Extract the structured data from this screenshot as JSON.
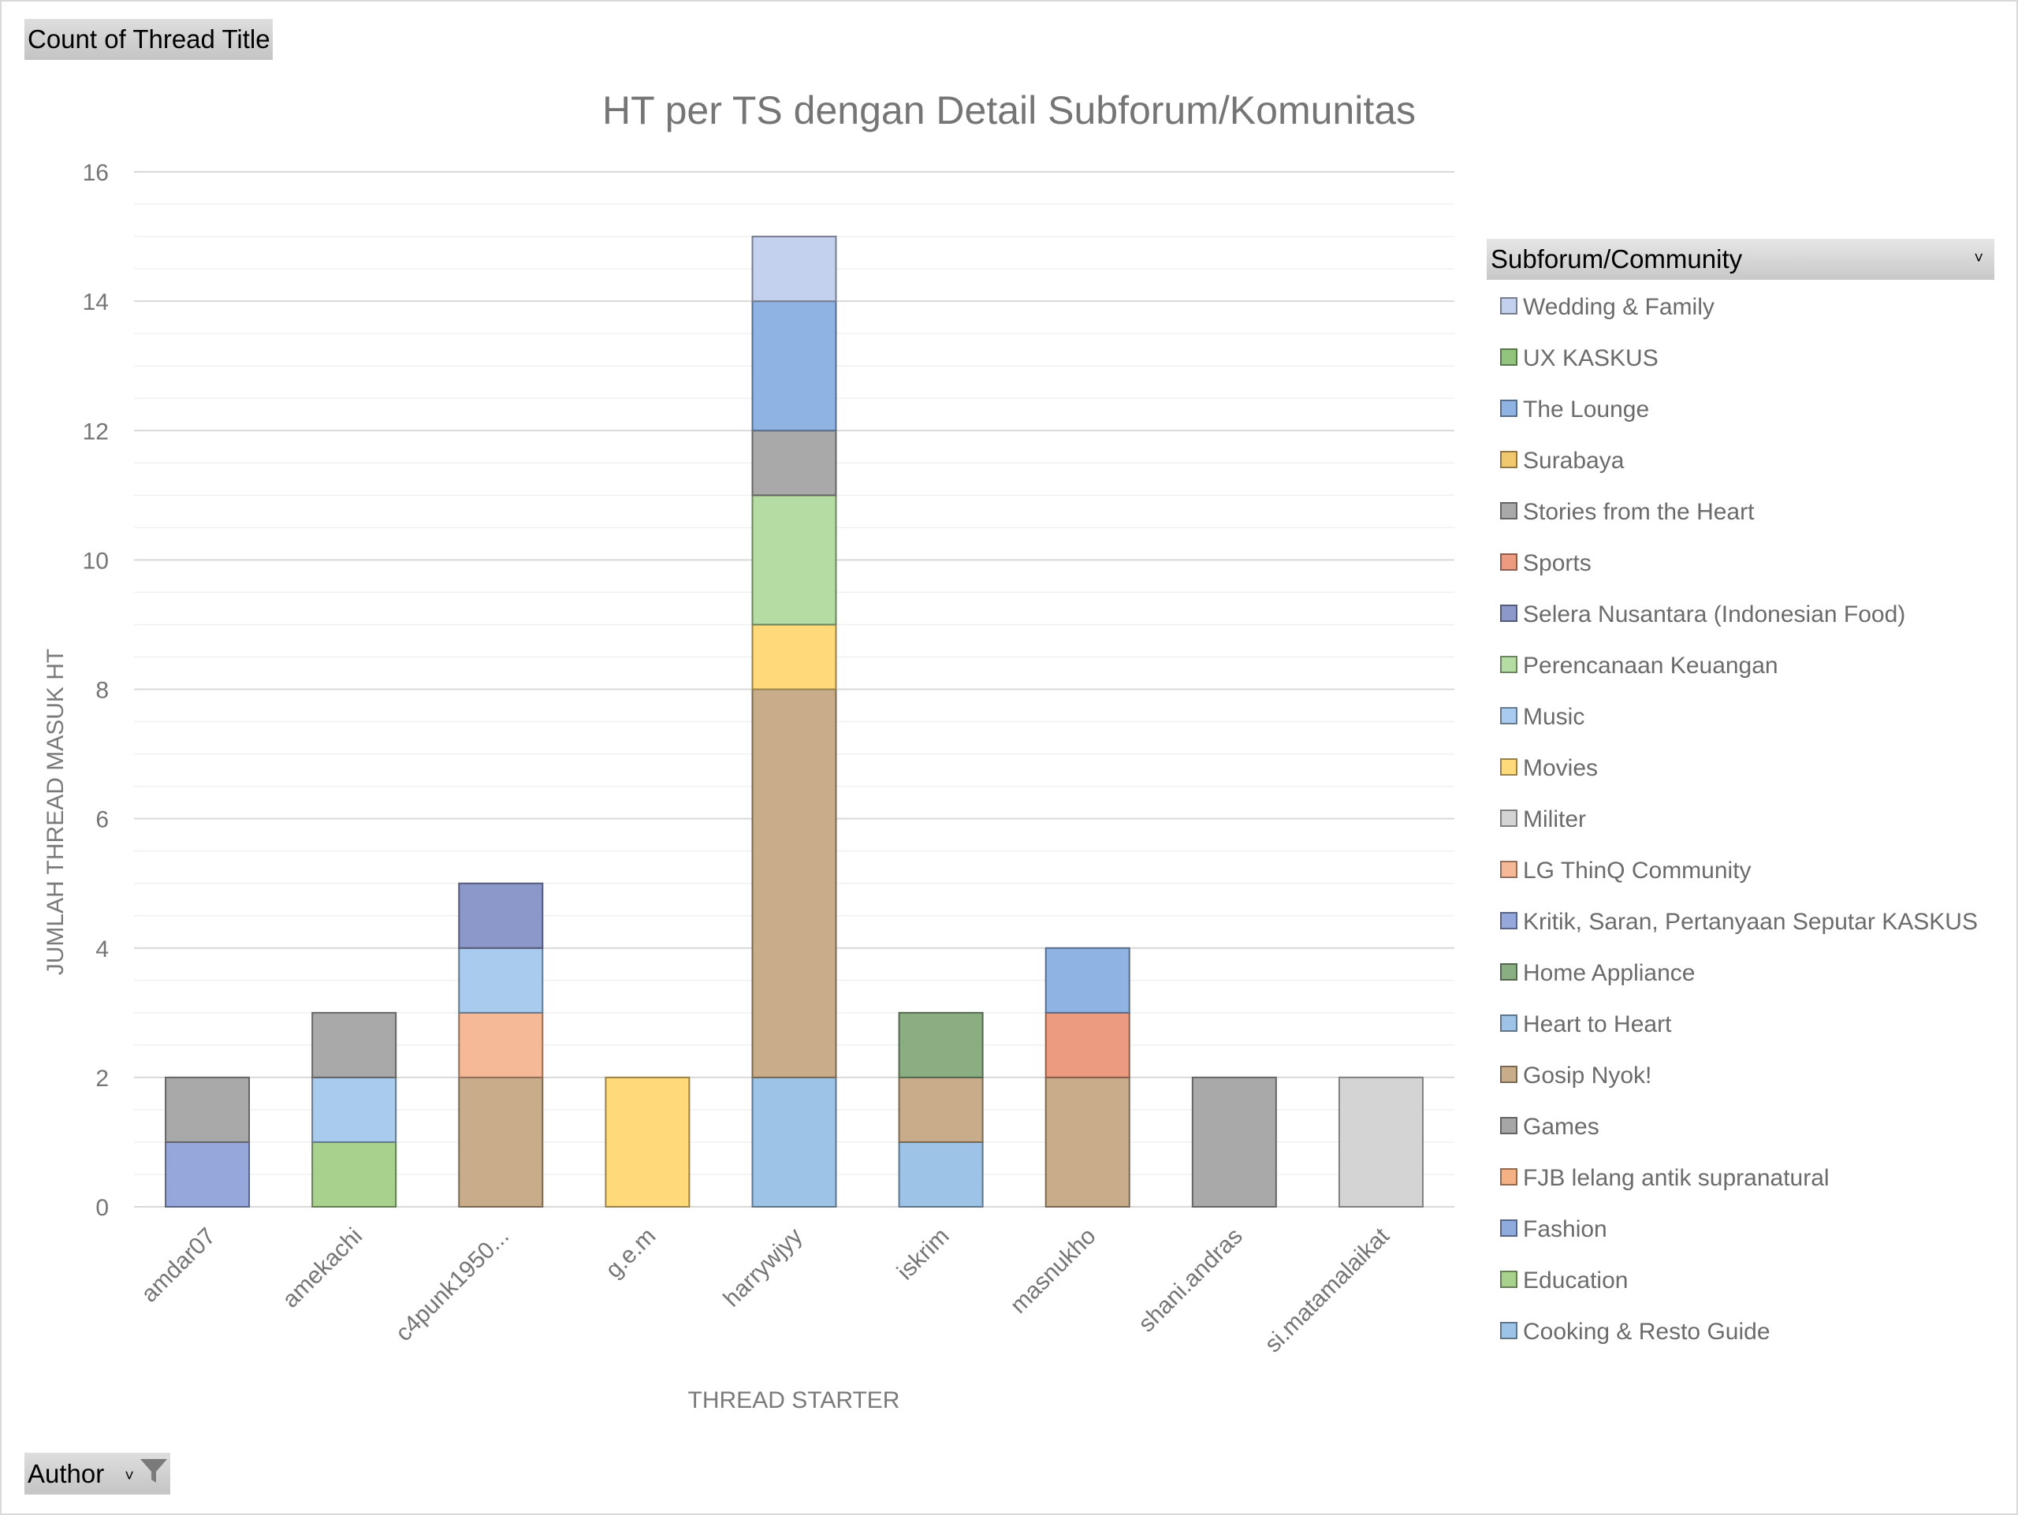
{
  "buttons": {
    "count_label": "Count of Thread Title",
    "author_label": "Author",
    "dropdown_glyph": "˅"
  },
  "chart_data": {
    "type": "bar",
    "stacked": true,
    "title": "HT per TS dengan Detail Subforum/Komunitas",
    "xlabel": "THREAD STARTER",
    "ylabel": "JUMLAH THREAD MASUK HT",
    "ylim": [
      0,
      16
    ],
    "yticks": [
      0,
      2,
      4,
      6,
      8,
      10,
      12,
      14,
      16
    ],
    "grid": true,
    "legend_title": "Subforum/Community",
    "legend_position": "right",
    "categories": [
      "amdar07",
      "amekachi",
      "c4punk1950...",
      "g.e.m",
      "harrywjyy",
      "iskrim",
      "masnukho",
      "shani.andras",
      "si.matamalaikat"
    ],
    "series": [
      {
        "name": "Cooking & Resto Guide",
        "color": "#9dc3e6",
        "values": [
          0,
          0,
          0,
          0,
          2,
          1,
          0,
          0,
          0
        ]
      },
      {
        "name": "Education",
        "color": "#a9d18e",
        "values": [
          0,
          1,
          0,
          0,
          0,
          0,
          0,
          0,
          0
        ]
      },
      {
        "name": "Fashion",
        "color": "#8faadc",
        "values": [
          0,
          0,
          0,
          0,
          0,
          0,
          0,
          0,
          0
        ]
      },
      {
        "name": "FJB lelang antik supranatural",
        "color": "#f4b183",
        "values": [
          0,
          0,
          0,
          0,
          0,
          0,
          0,
          0,
          0
        ]
      },
      {
        "name": "Games",
        "color": "#a6a6a6",
        "values": [
          0,
          0,
          0,
          0,
          0,
          0,
          0,
          0,
          0
        ]
      },
      {
        "name": "Gosip Nyok!",
        "color": "#c9ad8a",
        "values": [
          0,
          0,
          2,
          0,
          6,
          1,
          2,
          0,
          0
        ]
      },
      {
        "name": "Heart to Heart",
        "color": "#9dc3e6",
        "values": [
          0,
          0,
          0,
          0,
          0,
          0,
          0,
          0,
          0
        ]
      },
      {
        "name": "Home Appliance",
        "color": "#8aae82",
        "values": [
          0,
          0,
          0,
          0,
          0,
          1,
          0,
          0,
          0
        ]
      },
      {
        "name": "Kritik, Saran, Pertanyaan Seputar KASKUS",
        "color": "#96a7dc",
        "values": [
          1,
          0,
          0,
          0,
          0,
          0,
          0,
          0,
          0
        ]
      },
      {
        "name": "LG ThinQ Community",
        "color": "#f6b997",
        "values": [
          0,
          0,
          1,
          0,
          0,
          0,
          0,
          0,
          0
        ]
      },
      {
        "name": "Militer",
        "color": "#d4d4d4",
        "values": [
          0,
          0,
          0,
          0,
          0,
          0,
          0,
          0,
          2
        ]
      },
      {
        "name": "Movies",
        "color": "#ffd97a",
        "values": [
          0,
          0,
          0,
          2,
          1,
          0,
          0,
          0,
          0
        ]
      },
      {
        "name": "Music",
        "color": "#a9cbee",
        "values": [
          0,
          1,
          1,
          0,
          0,
          0,
          0,
          0,
          0
        ]
      },
      {
        "name": "Perencanaan Keuangan",
        "color": "#b5dca2",
        "values": [
          0,
          0,
          0,
          0,
          2,
          0,
          0,
          0,
          0
        ]
      },
      {
        "name": "Selera Nusantara (Indonesian Food)",
        "color": "#8b98c9",
        "values": [
          0,
          0,
          1,
          0,
          0,
          0,
          0,
          0,
          0
        ]
      },
      {
        "name": "Sports",
        "color": "#ec9a80",
        "values": [
          0,
          0,
          0,
          0,
          0,
          0,
          1,
          0,
          0
        ]
      },
      {
        "name": "Stories from the Heart",
        "color": "#a9a9a9",
        "values": [
          1,
          1,
          0,
          0,
          1,
          0,
          0,
          2,
          0
        ]
      },
      {
        "name": "Surabaya",
        "color": "#f2c86e",
        "values": [
          0,
          0,
          0,
          0,
          0,
          0,
          0,
          0,
          0
        ]
      },
      {
        "name": "The Lounge",
        "color": "#8fb4e3",
        "values": [
          0,
          0,
          0,
          0,
          2,
          0,
          1,
          0,
          0
        ]
      },
      {
        "name": "UX KASKUS",
        "color": "#93c47d",
        "values": [
          0,
          0,
          0,
          0,
          0,
          0,
          0,
          0,
          0
        ]
      },
      {
        "name": "Wedding & Family",
        "color": "#c3d1ef",
        "values": [
          0,
          0,
          0,
          0,
          1,
          0,
          0,
          0,
          0
        ]
      }
    ],
    "legend_order": [
      "Wedding & Family",
      "UX KASKUS",
      "The Lounge",
      "Surabaya",
      "Stories from the Heart",
      "Sports",
      "Selera Nusantara (Indonesian Food)",
      "Perencanaan Keuangan",
      "Music",
      "Movies",
      "Militer",
      "LG ThinQ Community",
      "Kritik, Saran, Pertanyaan Seputar KASKUS",
      "Home Appliance",
      "Heart to Heart",
      "Gosip Nyok!",
      "Games",
      "FJB lelang antik supranatural",
      "Fashion",
      "Education",
      "Cooking & Resto Guide"
    ]
  }
}
